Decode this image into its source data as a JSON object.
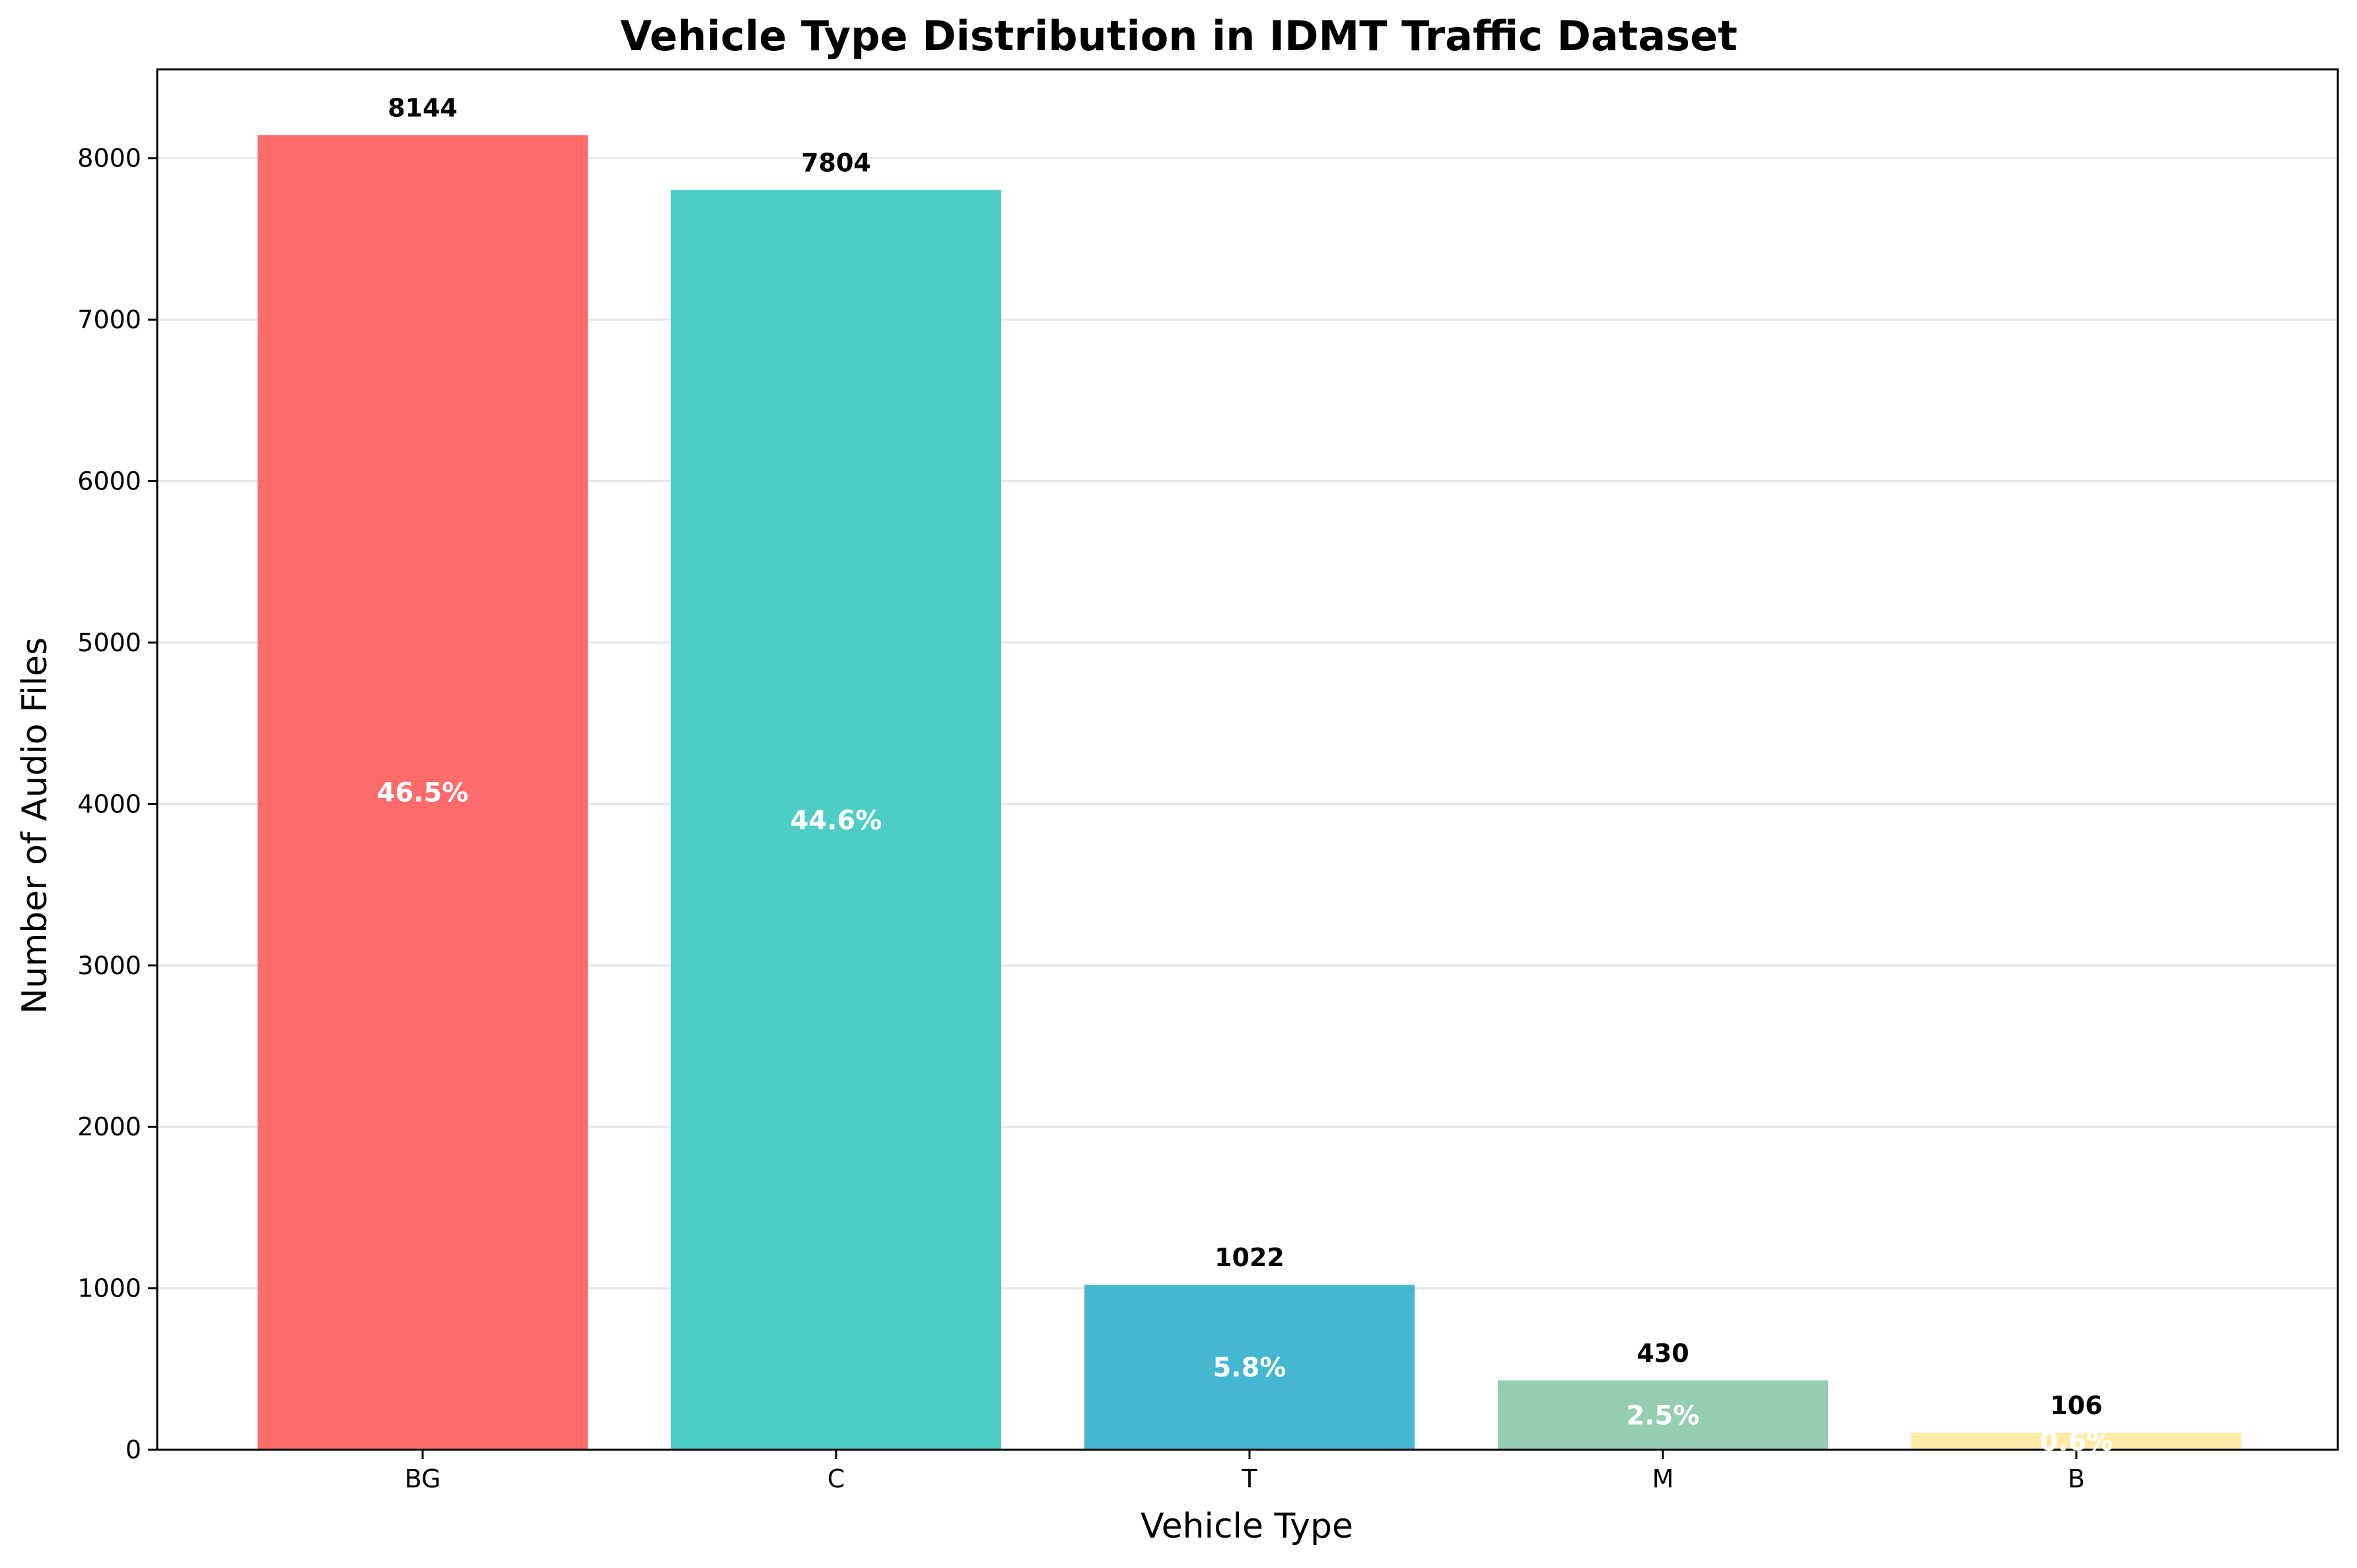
{
  "chart_data": {
    "type": "bar",
    "title": "Vehicle Type Distribution in IDMT Traffic Dataset",
    "xlabel": "Vehicle Type",
    "ylabel": "Number of Audio Files",
    "categories": [
      "BG",
      "C",
      "T",
      "M",
      "B"
    ],
    "values": [
      8144,
      7804,
      1022,
      430,
      106
    ],
    "value_labels": [
      "8144",
      "7804",
      "1022",
      "430",
      "106"
    ],
    "percent_labels": [
      "46.5%",
      "44.6%",
      "5.8%",
      "2.5%",
      "0.6%"
    ],
    "colors": [
      "#ff6b6b",
      "#4ecdc4",
      "#45b7d1",
      "#96ceb4",
      "#ffeaa7"
    ],
    "ylim": [
      0,
      8551
    ],
    "yticks": [
      0,
      1000,
      2000,
      3000,
      4000,
      5000,
      6000,
      7000,
      8000
    ],
    "ytick_labels": [
      "0",
      "1000",
      "2000",
      "3000",
      "4000",
      "5000",
      "6000",
      "7000",
      "8000"
    ],
    "grid": "horizontal",
    "legend": "none"
  }
}
